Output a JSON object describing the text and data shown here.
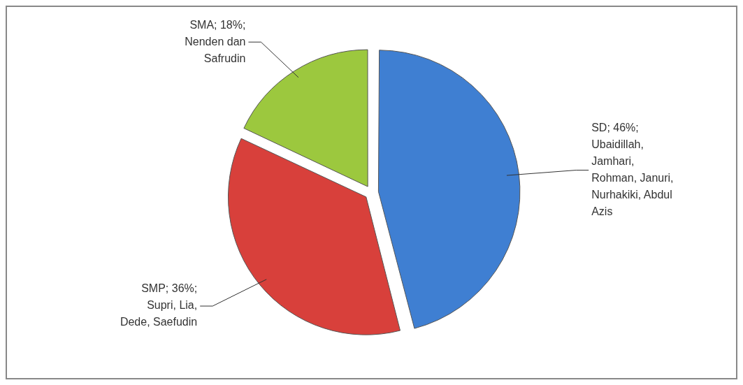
{
  "chart_data": {
    "type": "pie",
    "categories": [
      "SD",
      "SMP",
      "SMA"
    ],
    "values": [
      46,
      36,
      18
    ],
    "colors": [
      "#3f7fd2",
      "#d8403b",
      "#9cc83e"
    ],
    "value_labels": [
      "; 46%;",
      "; 36%;",
      "; 18%;"
    ],
    "annotations": [
      {
        "text": "Ubaidillah, Jamhari, Rohman, Januri, Nurhakiki, Abdul Azis",
        "x": "SD"
      },
      {
        "text": "Supri, Lia, Dede, Saefudin",
        "x": "SMP"
      },
      {
        "text": "Nenden dan Safrudin",
        "x": "SMA"
      }
    ],
    "legend": false
  }
}
